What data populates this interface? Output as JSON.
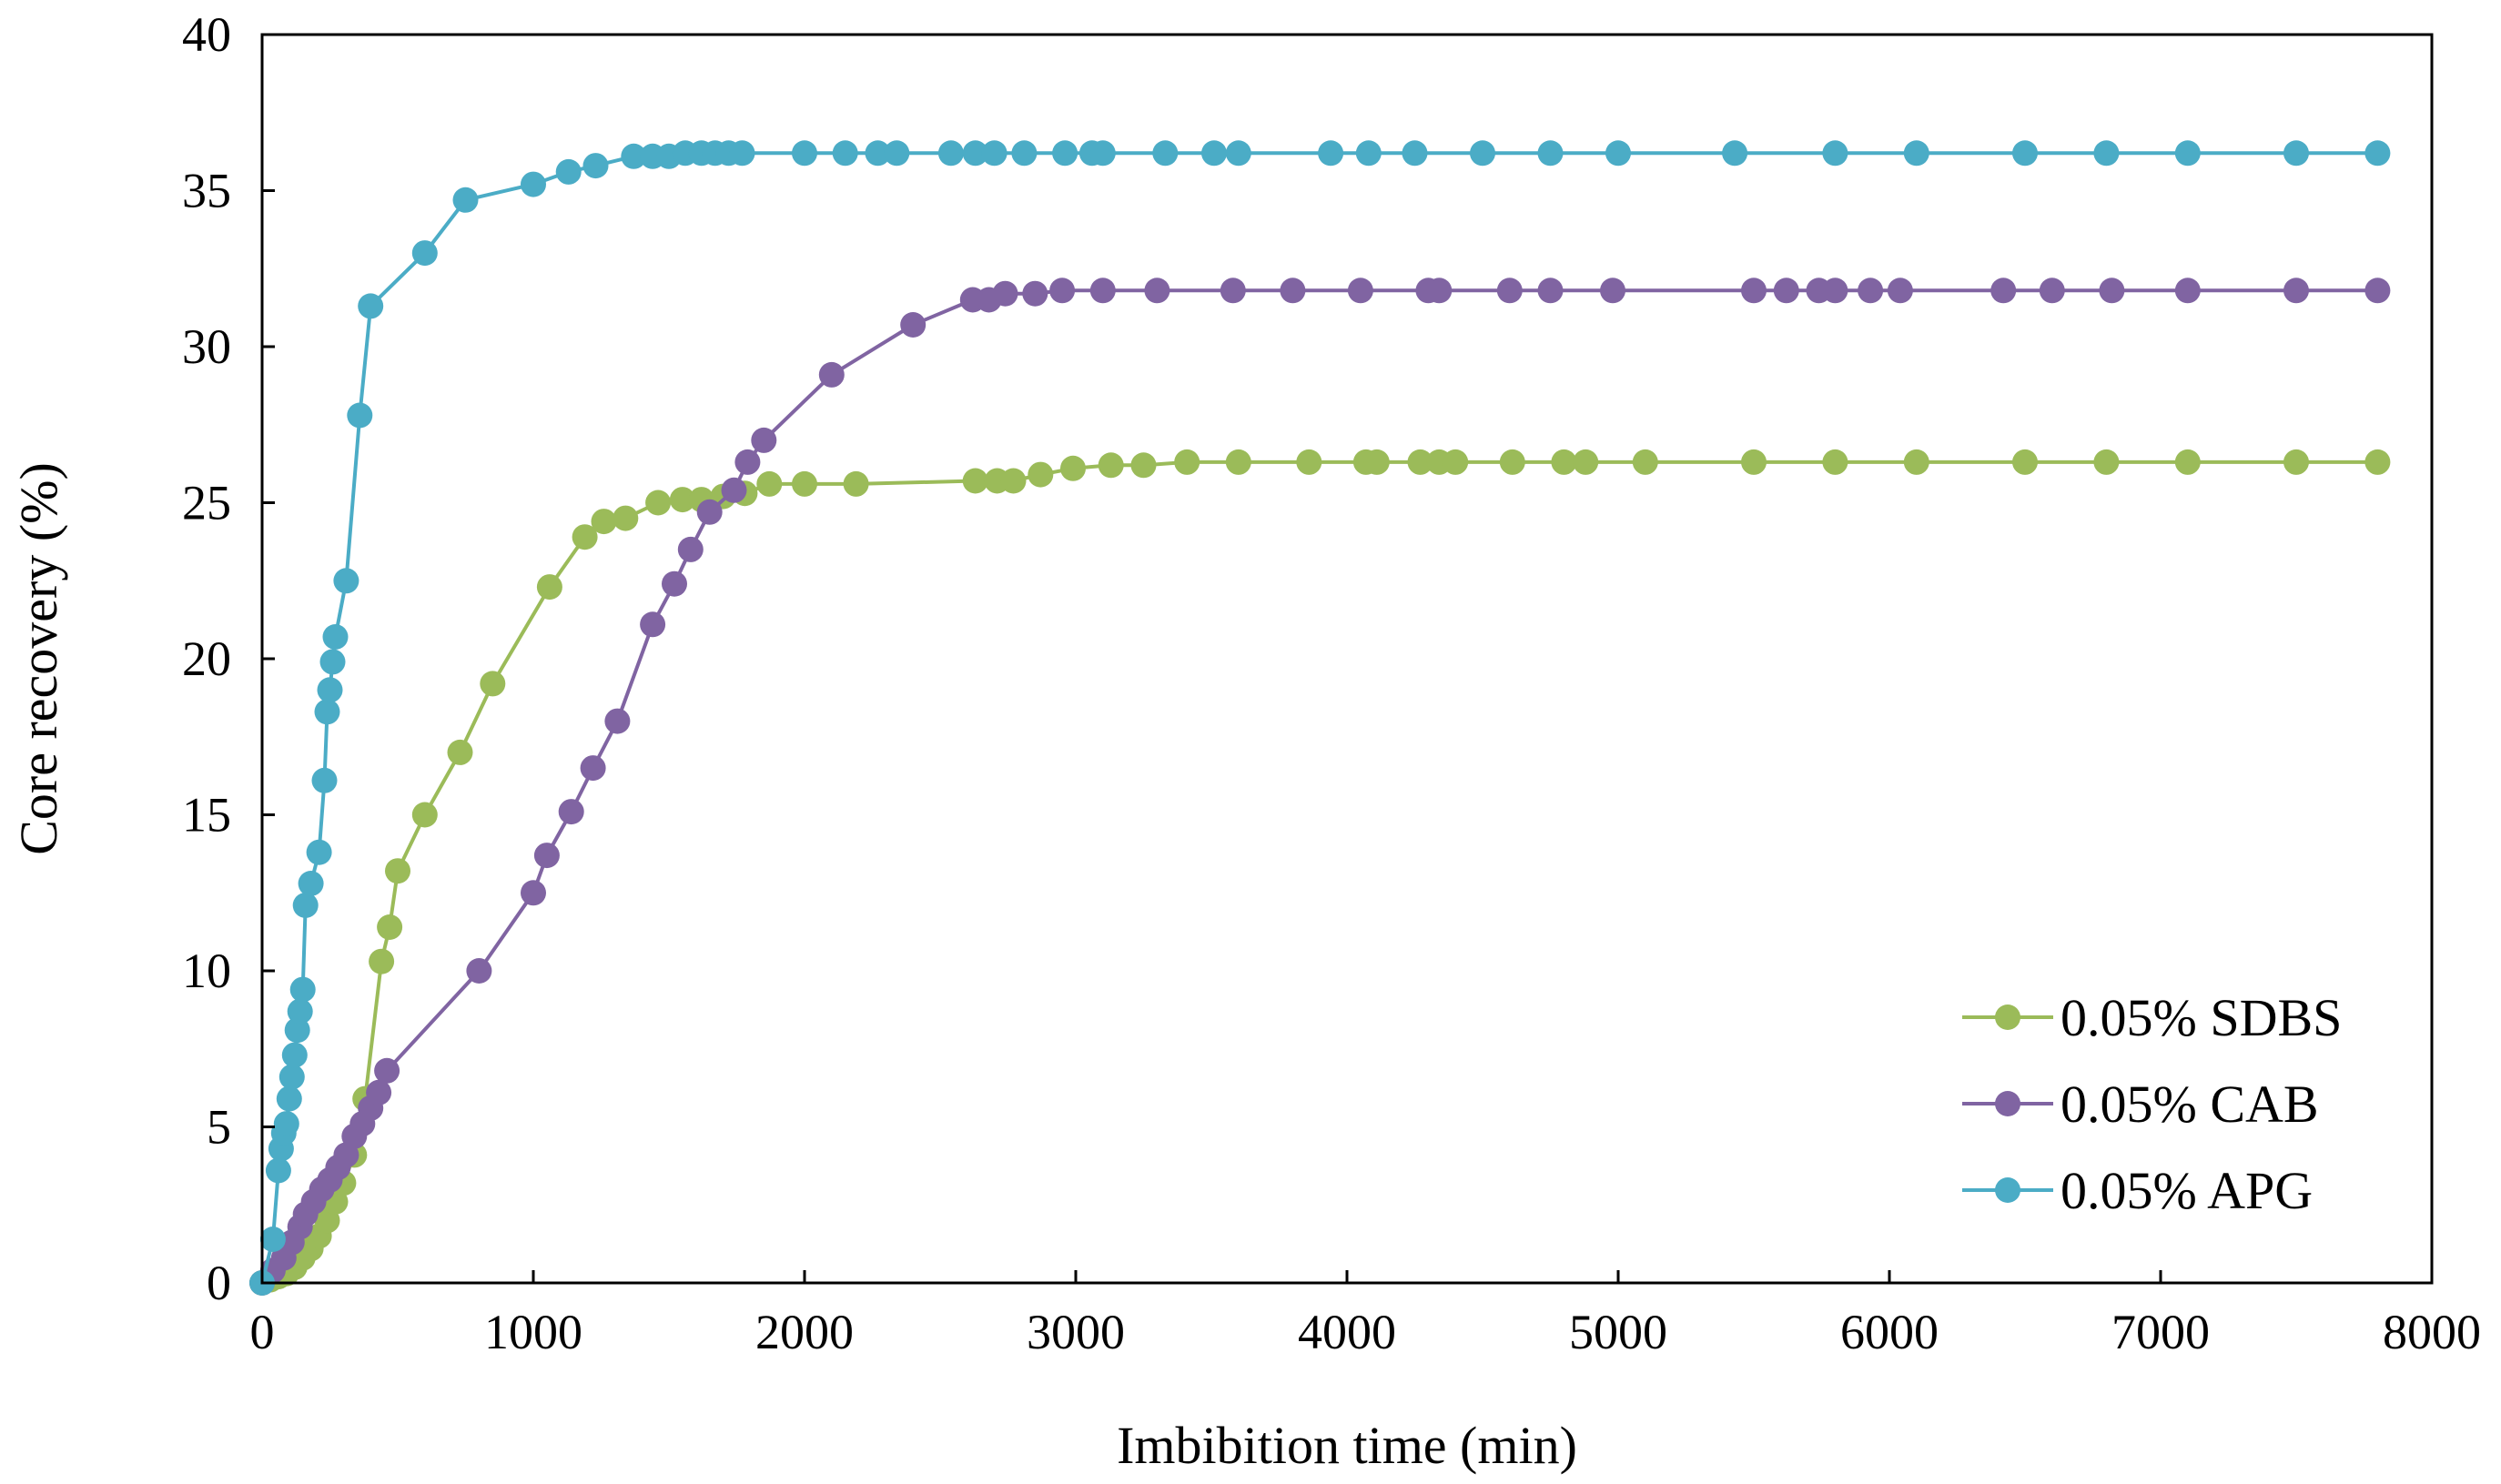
{
  "chart_data": {
    "type": "scatter",
    "title": "",
    "xlabel": "Imbibition time (min)",
    "ylabel": "Core recovery (%)",
    "xlim": [
      0,
      8000
    ],
    "ylim": [
      0,
      40
    ],
    "xticks": [
      0,
      1000,
      2000,
      3000,
      4000,
      5000,
      6000,
      7000,
      8000
    ],
    "yticks": [
      0,
      5,
      10,
      15,
      20,
      25,
      30,
      35,
      40
    ],
    "grid": false,
    "legend_position": "bottom-right",
    "series": [
      {
        "name": "0.05% SDBS",
        "color": "#9bbb59",
        "x": [
          0,
          30,
          60,
          90,
          120,
          150,
          180,
          210,
          240,
          270,
          300,
          340,
          380,
          440,
          470,
          500,
          600,
          730,
          850,
          1060,
          1190,
          1260,
          1340,
          1460,
          1550,
          1620,
          1700,
          1780,
          1870,
          2000,
          2190,
          2630,
          2710,
          2770,
          2870,
          2990,
          3130,
          3250,
          3410,
          3600,
          3860,
          4070,
          4110,
          4270,
          4340,
          4400,
          4610,
          4800,
          4880,
          5100,
          5500,
          5800,
          6100,
          6500,
          6800,
          7100,
          7500,
          7800
        ],
        "y": [
          0,
          0.1,
          0.2,
          0.3,
          0.5,
          0.8,
          1.1,
          1.5,
          2.0,
          2.6,
          3.2,
          4.1,
          5.9,
          10.3,
          11.4,
          13.2,
          15.0,
          17.0,
          19.2,
          22.3,
          23.9,
          24.4,
          24.5,
          25.0,
          25.1,
          25.1,
          25.2,
          25.3,
          25.6,
          25.6,
          25.6,
          25.7,
          25.7,
          25.7,
          25.9,
          26.1,
          26.2,
          26.2,
          26.3,
          26.3,
          26.3,
          26.3,
          26.3,
          26.3,
          26.3,
          26.3,
          26.3,
          26.3,
          26.3,
          26.3,
          26.3,
          26.3,
          26.3,
          26.3,
          26.3,
          26.3,
          26.3,
          26.3
        ]
      },
      {
        "name": "0.05% CAB",
        "color": "#8064a2",
        "x": [
          0,
          40,
          80,
          110,
          140,
          160,
          190,
          220,
          250,
          280,
          310,
          340,
          370,
          400,
          430,
          460,
          800,
          1000,
          1050,
          1140,
          1220,
          1310,
          1440,
          1520,
          1580,
          1650,
          1740,
          1790,
          1850,
          2100,
          2400,
          2620,
          2680,
          2740,
          2850,
          2950,
          3100,
          3300,
          3580,
          3800,
          4050,
          4300,
          4340,
          4600,
          4750,
          4980,
          5500,
          5620,
          5740,
          5800,
          5930,
          6040,
          6420,
          6600,
          6820,
          7100,
          7500,
          7800
        ],
        "y": [
          0,
          0.4,
          0.8,
          1.3,
          1.8,
          2.2,
          2.6,
          3.0,
          3.3,
          3.7,
          4.1,
          4.7,
          5.1,
          5.6,
          6.1,
          6.8,
          10.0,
          12.5,
          13.7,
          15.1,
          16.5,
          18.0,
          21.1,
          22.4,
          23.5,
          24.7,
          25.4,
          26.3,
          27.0,
          29.1,
          30.7,
          31.5,
          31.5,
          31.7,
          31.7,
          31.8,
          31.8,
          31.8,
          31.8,
          31.8,
          31.8,
          31.8,
          31.8,
          31.8,
          31.8,
          31.8,
          31.8,
          31.8,
          31.8,
          31.8,
          31.8,
          31.8,
          31.8,
          31.8,
          31.8,
          31.8,
          31.8,
          31.8
        ]
      },
      {
        "name": "0.05% APG",
        "color": "#4bacc6",
        "x": [
          0,
          40,
          60,
          70,
          80,
          90,
          100,
          110,
          120,
          130,
          140,
          150,
          160,
          180,
          210,
          230,
          240,
          250,
          260,
          270,
          310,
          360,
          400,
          600,
          750,
          1000,
          1130,
          1230,
          1370,
          1440,
          1500,
          1560,
          1620,
          1670,
          1720,
          1770,
          2000,
          2150,
          2270,
          2340,
          2540,
          2630,
          2700,
          2810,
          2960,
          3060,
          3100,
          3330,
          3510,
          3600,
          3940,
          4080,
          4250,
          4500,
          4750,
          5000,
          5430,
          5800,
          6100,
          6500,
          6800,
          7100,
          7500,
          7800
        ],
        "y": [
          0,
          1.4,
          3.6,
          4.3,
          4.8,
          5.1,
          5.9,
          6.6,
          7.3,
          8.1,
          8.7,
          9.4,
          12.1,
          12.8,
          13.8,
          16.1,
          18.3,
          19.0,
          19.9,
          20.7,
          22.5,
          27.8,
          31.3,
          33.0,
          34.7,
          35.2,
          35.6,
          35.8,
          36.1,
          36.1,
          36.1,
          36.2,
          36.2,
          36.2,
          36.2,
          36.2,
          36.2,
          36.2,
          36.2,
          36.2,
          36.2,
          36.2,
          36.2,
          36.2,
          36.2,
          36.2,
          36.2,
          36.2,
          36.2,
          36.2,
          36.2,
          36.2,
          36.2,
          36.2,
          36.2,
          36.2,
          36.2,
          36.2,
          36.2,
          36.2,
          36.2,
          36.2,
          36.2,
          36.2
        ]
      }
    ]
  }
}
